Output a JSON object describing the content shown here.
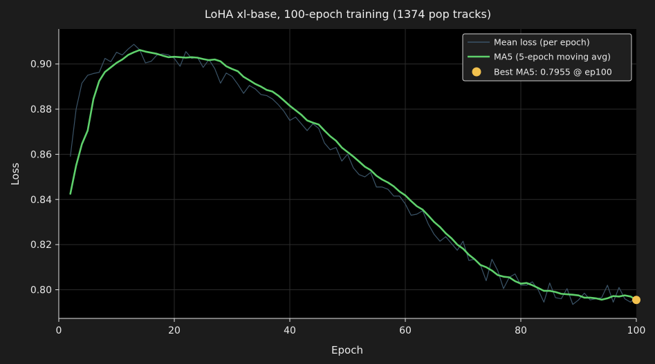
{
  "chart_data": {
    "type": "line",
    "title": "LoHA xl-base, 100-epoch training (1374 pop tracks)",
    "xlabel": "Epoch",
    "ylabel": "Loss",
    "xlim": [
      0,
      100
    ],
    "ylim": [
      0.7873,
      0.9155
    ],
    "xticks": [
      0,
      20,
      40,
      60,
      80,
      100
    ],
    "xtick_labels": [
      "0",
      "20",
      "40",
      "60",
      "80",
      "100"
    ],
    "yticks": [
      0.8,
      0.82,
      0.84,
      0.86,
      0.88,
      0.9
    ],
    "ytick_labels": [
      "0.80",
      "0.82",
      "0.84",
      "0.86",
      "0.88",
      "0.90"
    ],
    "grid": true,
    "legend_position": "top-right",
    "colors": {
      "figure_background": "#1c1c1c",
      "plot_background": "#000000",
      "grid": "#2c2c2c",
      "axis": "#e6e6e6",
      "mean_loss": "#3b5468",
      "ma5": "#5fd16c",
      "best_marker": "#f2c14e",
      "legend_background": "#1f1f1f",
      "legend_border": "#cfcfcf"
    },
    "series": [
      {
        "name": "Mean loss (per epoch)",
        "style": "thin-line",
        "x": [
          2,
          3,
          4,
          5,
          6,
          7,
          8,
          9,
          10,
          11,
          12,
          13,
          14,
          15,
          16,
          17,
          18,
          19,
          20,
          21,
          22,
          23,
          24,
          25,
          26,
          27,
          28,
          29,
          30,
          31,
          32,
          33,
          34,
          35,
          36,
          37,
          38,
          39,
          40,
          41,
          42,
          43,
          44,
          45,
          46,
          47,
          48,
          49,
          50,
          51,
          52,
          53,
          54,
          55,
          56,
          57,
          58,
          59,
          60,
          61,
          62,
          63,
          64,
          65,
          66,
          67,
          68,
          69,
          70,
          71,
          72,
          73,
          74,
          75,
          76,
          77,
          78,
          79,
          80,
          81,
          82,
          83,
          84,
          85,
          86,
          87,
          88,
          89,
          90,
          91,
          92,
          93,
          94,
          95,
          96,
          97,
          98,
          99,
          100
        ],
        "values": [
          0.859,
          0.88,
          0.8915,
          0.895,
          0.8958,
          0.8963,
          0.9025,
          0.901,
          0.9052,
          0.904,
          0.9066,
          0.9087,
          0.9063,
          0.9005,
          0.9012,
          0.904,
          0.9045,
          0.904,
          0.9025,
          0.899,
          0.9055,
          0.9025,
          0.903,
          0.8985,
          0.902,
          0.898,
          0.8915,
          0.896,
          0.8945,
          0.891,
          0.887,
          0.8905,
          0.889,
          0.8865,
          0.886,
          0.8845,
          0.882,
          0.879,
          0.875,
          0.8765,
          0.8735,
          0.8705,
          0.8735,
          0.8715,
          0.865,
          0.862,
          0.863,
          0.857,
          0.86,
          0.854,
          0.851,
          0.85,
          0.852,
          0.8455,
          0.8455,
          0.8445,
          0.8415,
          0.8415,
          0.838,
          0.833,
          0.8335,
          0.835,
          0.829,
          0.8245,
          0.8215,
          0.8235,
          0.8205,
          0.8175,
          0.8215,
          0.813,
          0.8135,
          0.811,
          0.804,
          0.8135,
          0.8085,
          0.8005,
          0.8055,
          0.807,
          0.802,
          0.802,
          0.8035,
          0.8,
          0.7945,
          0.803,
          0.7965,
          0.796,
          0.8005,
          0.7935,
          0.7955,
          0.7985,
          0.7955,
          0.796,
          0.7965,
          0.802,
          0.7945,
          0.801,
          0.796,
          0.7945,
          0.797
        ]
      },
      {
        "name": "MA5 (5-epoch moving avg)",
        "style": "thick-line",
        "x": [
          2,
          3,
          4,
          5,
          6,
          7,
          8,
          9,
          10,
          11,
          12,
          13,
          14,
          15,
          16,
          17,
          18,
          19,
          20,
          21,
          22,
          23,
          24,
          25,
          26,
          27,
          28,
          29,
          30,
          31,
          32,
          33,
          34,
          35,
          36,
          37,
          38,
          39,
          40,
          41,
          42,
          43,
          44,
          45,
          46,
          47,
          48,
          49,
          50,
          51,
          52,
          53,
          54,
          55,
          56,
          57,
          58,
          59,
          60,
          61,
          62,
          63,
          64,
          65,
          66,
          67,
          68,
          69,
          70,
          71,
          72,
          73,
          74,
          75,
          76,
          77,
          78,
          79,
          80,
          81,
          82,
          83,
          84,
          85,
          86,
          87,
          88,
          89,
          90,
          91,
          92,
          93,
          94,
          95,
          96,
          97,
          98,
          99,
          100
        ],
        "values": [
          0.8425,
          0.855,
          0.8645,
          0.8705,
          0.8845,
          0.8925,
          0.8965,
          0.8985,
          0.9005,
          0.902,
          0.904,
          0.9052,
          0.9062,
          0.9055,
          0.905,
          0.9045,
          0.9037,
          0.903,
          0.9032,
          0.903,
          0.9028,
          0.903,
          0.9028,
          0.9022,
          0.9017,
          0.902,
          0.9012,
          0.899,
          0.8978,
          0.8968,
          0.8943,
          0.8928,
          0.8912,
          0.89,
          0.8885,
          0.8878,
          0.886,
          0.8838,
          0.8815,
          0.8795,
          0.8775,
          0.875,
          0.874,
          0.8732,
          0.8705,
          0.868,
          0.866,
          0.863,
          0.861,
          0.859,
          0.8568,
          0.8545,
          0.853,
          0.8505,
          0.8488,
          0.8475,
          0.8458,
          0.8435,
          0.8418,
          0.8393,
          0.837,
          0.8355,
          0.8328,
          0.83,
          0.8278,
          0.825,
          0.8228,
          0.82,
          0.8182,
          0.8155,
          0.8135,
          0.811,
          0.81,
          0.8085,
          0.8065,
          0.8058,
          0.8055,
          0.8038,
          0.8027,
          0.803,
          0.802,
          0.8008,
          0.7995,
          0.7995,
          0.799,
          0.7982,
          0.798,
          0.7978,
          0.7975,
          0.7965,
          0.7965,
          0.7962,
          0.7956,
          0.7962,
          0.7972,
          0.797,
          0.7975,
          0.797,
          0.7955
        ]
      }
    ],
    "best_point": {
      "name": "Best MA5: 0.7955 @ ep100",
      "x": 100,
      "y": 0.7955
    }
  }
}
